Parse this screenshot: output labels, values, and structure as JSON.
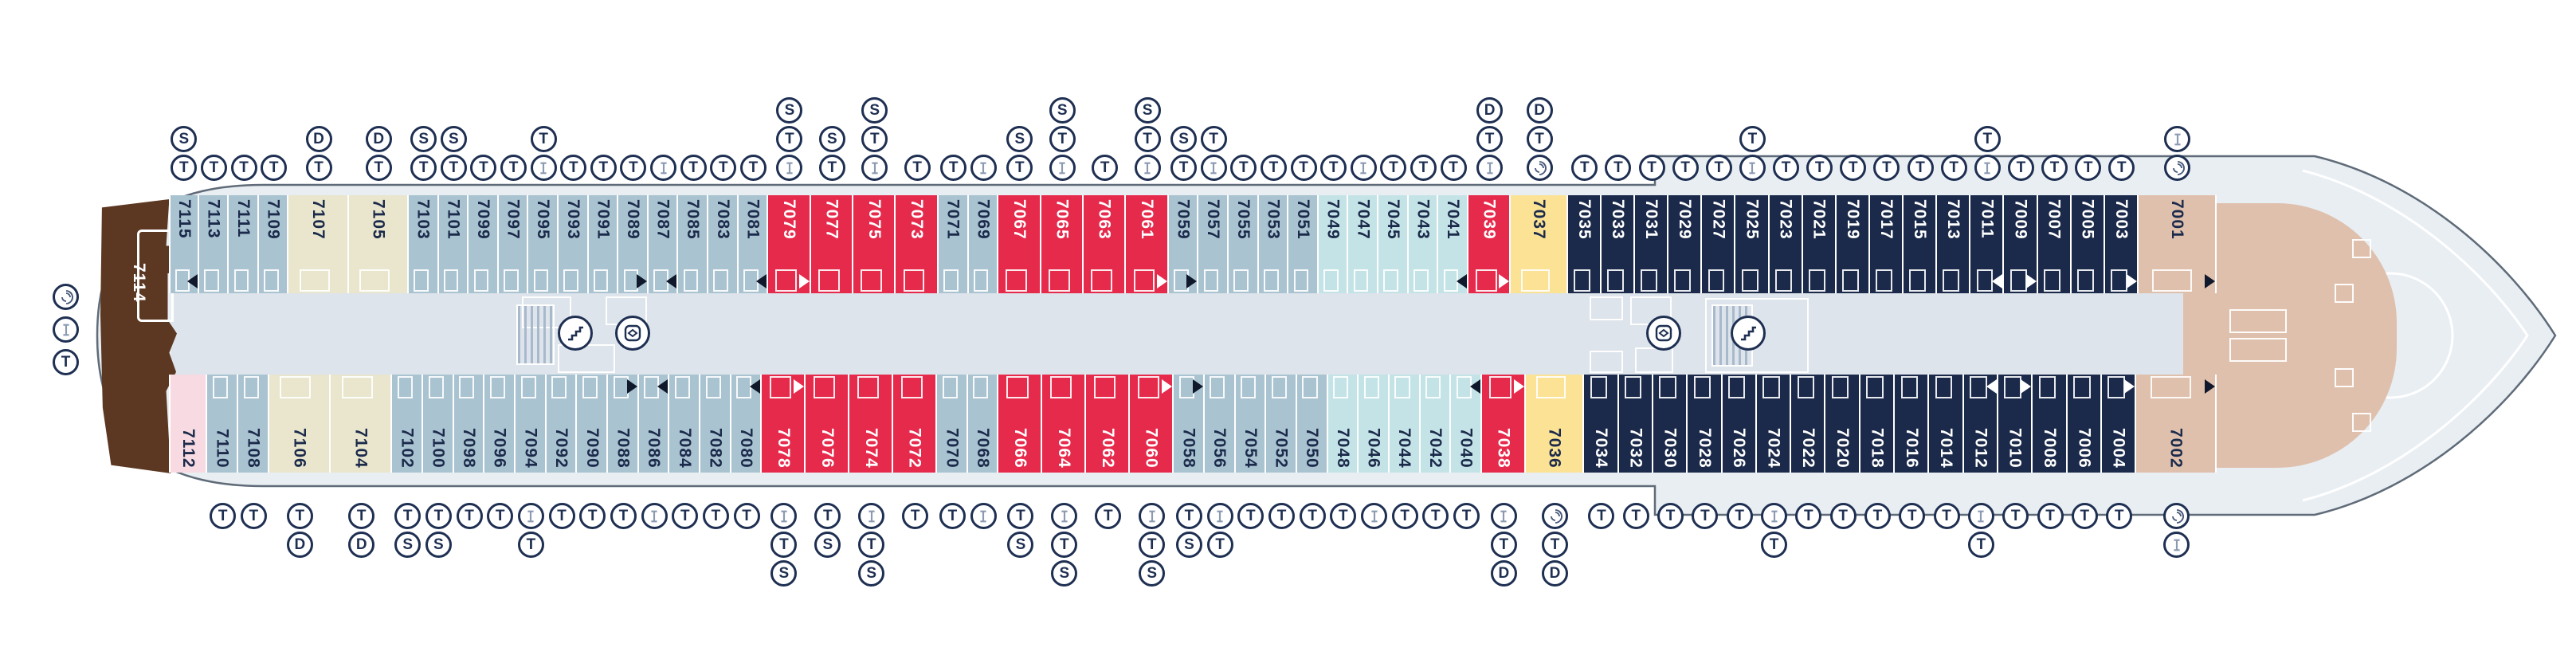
{
  "plan": {
    "stern_suite": {
      "num": "7114",
      "category": "suite-brown",
      "icons": [
        "laundry",
        "bunk",
        "T"
      ]
    },
    "icon_legend": {
      "T": "third-berth",
      "S": "sofa-bed",
      "D": "double-sofa-bed",
      "B": "bunk-bed",
      "L": "launderette"
    },
    "colors": {
      "standard": "#a9c3d1",
      "beige": "#e9e6cd",
      "red": "#e62a4c",
      "teal": "#c4e3e7",
      "yellow": "#fbe294",
      "navy": "#1b2a4a",
      "tan": "#dfc0ad",
      "pink": "#f8dbe2",
      "brown": "#5c3722",
      "hull_fill": "#e9eef3",
      "hull_stroke": "#5f6b78",
      "corridor": "#dde4eb",
      "icon_ring": "#1e2f52"
    },
    "category_weights": {
      "st": 1,
      "bg": 2.0,
      "rd": 1.42,
      "tl": 1,
      "yl": 1.9,
      "nv": 1.12,
      "tn": 2.6,
      "pk": 1.25
    },
    "features": {
      "aft_lobby": [
        "stairs",
        "elevator"
      ],
      "fwd_lobby": [
        "elevator",
        "stairs"
      ],
      "bow": [
        "helipad-arc"
      ]
    },
    "top_row": [
      {
        "num": "7115",
        "cat": "st",
        "icons": [
          "T",
          "S"
        ],
        "marker": "bl"
      },
      {
        "num": "7113",
        "cat": "st",
        "icons": [
          "T"
        ]
      },
      {
        "num": "7111",
        "cat": "st",
        "icons": [
          "T"
        ]
      },
      {
        "num": "7109",
        "cat": "st",
        "icons": [
          "T"
        ]
      },
      {
        "num": "7107",
        "cat": "bg",
        "icons": [
          "T",
          "D"
        ]
      },
      {
        "num": "7105",
        "cat": "bg",
        "icons": [
          "T",
          "D"
        ]
      },
      {
        "num": "7103",
        "cat": "st",
        "icons": [
          "T",
          "S"
        ]
      },
      {
        "num": "7101",
        "cat": "st",
        "icons": [
          "T",
          "S"
        ]
      },
      {
        "num": "7099",
        "cat": "st",
        "icons": [
          "T"
        ]
      },
      {
        "num": "7097",
        "cat": "st",
        "icons": [
          "T"
        ]
      },
      {
        "num": "7095",
        "cat": "st",
        "icons": [
          "B",
          "T"
        ]
      },
      {
        "num": "7093",
        "cat": "st",
        "icons": [
          "T"
        ]
      },
      {
        "num": "7091",
        "cat": "st",
        "icons": [
          "T"
        ]
      },
      {
        "num": "7089",
        "cat": "st",
        "icons": [
          "T"
        ],
        "marker": "br"
      },
      {
        "num": "7087",
        "cat": "st",
        "icons": [
          "B"
        ],
        "marker": "bl"
      },
      {
        "num": "7085",
        "cat": "st",
        "icons": [
          "T"
        ]
      },
      {
        "num": "7083",
        "cat": "st",
        "icons": [
          "T"
        ]
      },
      {
        "num": "7081",
        "cat": "st",
        "icons": [
          "T"
        ],
        "marker": "bl"
      },
      {
        "num": "7079",
        "cat": "rd",
        "icons": [
          "B",
          "T",
          "S"
        ],
        "marker": "wr"
      },
      {
        "num": "7077",
        "cat": "rd",
        "icons": [
          "T",
          "S"
        ]
      },
      {
        "num": "7075",
        "cat": "rd",
        "icons": [
          "B",
          "T",
          "S"
        ]
      },
      {
        "num": "7073",
        "cat": "rd",
        "icons": [
          "T"
        ]
      },
      {
        "num": "7071",
        "cat": "st",
        "icons": [
          "T"
        ]
      },
      {
        "num": "7069",
        "cat": "st",
        "icons": [
          "B"
        ]
      },
      {
        "num": "7067",
        "cat": "rd",
        "icons": [
          "T",
          "S"
        ]
      },
      {
        "num": "7065",
        "cat": "rd",
        "icons": [
          "B",
          "T",
          "S"
        ]
      },
      {
        "num": "7063",
        "cat": "rd",
        "icons": [
          "T"
        ]
      },
      {
        "num": "7061",
        "cat": "rd",
        "icons": [
          "B",
          "T",
          "S"
        ],
        "marker": "wr"
      },
      {
        "num": "7059",
        "cat": "st",
        "icons": [
          "T",
          "S"
        ],
        "marker": "br"
      },
      {
        "num": "7057",
        "cat": "st",
        "icons": [
          "B",
          "T"
        ]
      },
      {
        "num": "7055",
        "cat": "st",
        "icons": [
          "T"
        ]
      },
      {
        "num": "7053",
        "cat": "st",
        "icons": [
          "T"
        ]
      },
      {
        "num": "7051",
        "cat": "st",
        "icons": [
          "T"
        ]
      },
      {
        "num": "7049",
        "cat": "tl",
        "icons": [
          "T"
        ]
      },
      {
        "num": "7047",
        "cat": "tl",
        "icons": [
          "B"
        ]
      },
      {
        "num": "7045",
        "cat": "tl",
        "icons": [
          "T"
        ]
      },
      {
        "num": "7043",
        "cat": "tl",
        "icons": [
          "T"
        ]
      },
      {
        "num": "7041",
        "cat": "tl",
        "icons": [
          "T"
        ],
        "marker": "bl"
      },
      {
        "num": "7039",
        "cat": "rd",
        "icons": [
          "B",
          "T",
          "D"
        ],
        "marker": "wr"
      },
      {
        "num": "7037",
        "cat": "yl",
        "icons": [
          "L",
          "T",
          "D"
        ]
      },
      {
        "num": "7035",
        "cat": "nv",
        "icons": [
          "T"
        ]
      },
      {
        "num": "7033",
        "cat": "nv",
        "icons": [
          "T"
        ]
      },
      {
        "num": "7031",
        "cat": "nv",
        "icons": [
          "T"
        ]
      },
      {
        "num": "7029",
        "cat": "nv",
        "icons": [
          "T"
        ]
      },
      {
        "num": "7027",
        "cat": "nv",
        "icons": [
          "T"
        ]
      },
      {
        "num": "7025",
        "cat": "nv",
        "icons": [
          "B",
          "T"
        ]
      },
      {
        "num": "7023",
        "cat": "nv",
        "icons": [
          "T"
        ]
      },
      {
        "num": "7021",
        "cat": "nv",
        "icons": [
          "T"
        ]
      },
      {
        "num": "7019",
        "cat": "nv",
        "icons": [
          "T"
        ]
      },
      {
        "num": "7017",
        "cat": "nv",
        "icons": [
          "T"
        ]
      },
      {
        "num": "7015",
        "cat": "nv",
        "icons": [
          "T"
        ]
      },
      {
        "num": "7013",
        "cat": "nv",
        "icons": [
          "T"
        ]
      },
      {
        "num": "7011",
        "cat": "nv",
        "icons": [
          "B",
          "T"
        ],
        "marker": "wl"
      },
      {
        "num": "7009",
        "cat": "nv",
        "icons": [
          "T"
        ],
        "marker": "wr"
      },
      {
        "num": "7007",
        "cat": "nv",
        "icons": [
          "T"
        ]
      },
      {
        "num": "7005",
        "cat": "nv",
        "icons": [
          "T"
        ]
      },
      {
        "num": "7003",
        "cat": "nv",
        "icons": [
          "T"
        ],
        "marker": "wr"
      },
      {
        "num": "7001",
        "cat": "tn",
        "icons": [
          "L",
          "B"
        ],
        "marker": "br"
      }
    ],
    "bottom_row": [
      {
        "num": "7112",
        "cat": "pk",
        "icons": []
      },
      {
        "num": "7110",
        "cat": "st",
        "icons": [
          "T"
        ]
      },
      {
        "num": "7108",
        "cat": "st",
        "icons": [
          "T"
        ]
      },
      {
        "num": "7106",
        "cat": "bg",
        "icons": [
          "T",
          "D"
        ]
      },
      {
        "num": "7104",
        "cat": "bg",
        "icons": [
          "T",
          "D"
        ]
      },
      {
        "num": "7102",
        "cat": "st",
        "icons": [
          "T",
          "S"
        ]
      },
      {
        "num": "7100",
        "cat": "st",
        "icons": [
          "T",
          "S"
        ]
      },
      {
        "num": "7098",
        "cat": "st",
        "icons": [
          "T"
        ]
      },
      {
        "num": "7096",
        "cat": "st",
        "icons": [
          "T"
        ]
      },
      {
        "num": "7094",
        "cat": "st",
        "icons": [
          "B",
          "T"
        ]
      },
      {
        "num": "7092",
        "cat": "st",
        "icons": [
          "T"
        ]
      },
      {
        "num": "7090",
        "cat": "st",
        "icons": [
          "T"
        ]
      },
      {
        "num": "7088",
        "cat": "st",
        "icons": [
          "T"
        ],
        "marker": "br"
      },
      {
        "num": "7086",
        "cat": "st",
        "icons": [
          "B"
        ],
        "marker": "bl"
      },
      {
        "num": "7084",
        "cat": "st",
        "icons": [
          "T"
        ]
      },
      {
        "num": "7082",
        "cat": "st",
        "icons": [
          "T"
        ]
      },
      {
        "num": "7080",
        "cat": "st",
        "icons": [
          "T"
        ],
        "marker": "bl"
      },
      {
        "num": "7078",
        "cat": "rd",
        "icons": [
          "B",
          "T",
          "S"
        ],
        "marker": "wr"
      },
      {
        "num": "7076",
        "cat": "rd",
        "icons": [
          "T",
          "S"
        ]
      },
      {
        "num": "7074",
        "cat": "rd",
        "icons": [
          "B",
          "T",
          "S"
        ]
      },
      {
        "num": "7072",
        "cat": "rd",
        "icons": [
          "T"
        ]
      },
      {
        "num": "7070",
        "cat": "st",
        "icons": [
          "T"
        ]
      },
      {
        "num": "7068",
        "cat": "st",
        "icons": [
          "B"
        ]
      },
      {
        "num": "7066",
        "cat": "rd",
        "icons": [
          "T",
          "S"
        ]
      },
      {
        "num": "7064",
        "cat": "rd",
        "icons": [
          "B",
          "T",
          "S"
        ]
      },
      {
        "num": "7062",
        "cat": "rd",
        "icons": [
          "T"
        ]
      },
      {
        "num": "7060",
        "cat": "rd",
        "icons": [
          "B",
          "T",
          "S"
        ],
        "marker": "wr"
      },
      {
        "num": "7058",
        "cat": "st",
        "icons": [
          "T",
          "S"
        ],
        "marker": "br"
      },
      {
        "num": "7056",
        "cat": "st",
        "icons": [
          "B",
          "T"
        ]
      },
      {
        "num": "7054",
        "cat": "st",
        "icons": [
          "T"
        ]
      },
      {
        "num": "7052",
        "cat": "st",
        "icons": [
          "T"
        ]
      },
      {
        "num": "7050",
        "cat": "st",
        "icons": [
          "T"
        ]
      },
      {
        "num": "7048",
        "cat": "tl",
        "icons": [
          "T"
        ]
      },
      {
        "num": "7046",
        "cat": "tl",
        "icons": [
          "B"
        ]
      },
      {
        "num": "7044",
        "cat": "tl",
        "icons": [
          "T"
        ]
      },
      {
        "num": "7042",
        "cat": "tl",
        "icons": [
          "T"
        ]
      },
      {
        "num": "7040",
        "cat": "tl",
        "icons": [
          "T"
        ],
        "marker": "bl"
      },
      {
        "num": "7038",
        "cat": "rd",
        "icons": [
          "B",
          "T",
          "D"
        ],
        "marker": "wr"
      },
      {
        "num": "7036",
        "cat": "yl",
        "icons": [
          "L",
          "T",
          "D"
        ]
      },
      {
        "num": "7034",
        "cat": "nv",
        "icons": [
          "T"
        ]
      },
      {
        "num": "7032",
        "cat": "nv",
        "icons": [
          "T"
        ]
      },
      {
        "num": "7030",
        "cat": "nv",
        "icons": [
          "T"
        ]
      },
      {
        "num": "7028",
        "cat": "nv",
        "icons": [
          "T"
        ]
      },
      {
        "num": "7026",
        "cat": "nv",
        "icons": [
          "T"
        ]
      },
      {
        "num": "7024",
        "cat": "nv",
        "icons": [
          "B",
          "T"
        ]
      },
      {
        "num": "7022",
        "cat": "nv",
        "icons": [
          "T"
        ]
      },
      {
        "num": "7020",
        "cat": "nv",
        "icons": [
          "T"
        ]
      },
      {
        "num": "7018",
        "cat": "nv",
        "icons": [
          "T"
        ]
      },
      {
        "num": "7016",
        "cat": "nv",
        "icons": [
          "T"
        ]
      },
      {
        "num": "7014",
        "cat": "nv",
        "icons": [
          "T"
        ]
      },
      {
        "num": "7012",
        "cat": "nv",
        "icons": [
          "B",
          "T"
        ],
        "marker": "wl"
      },
      {
        "num": "7010",
        "cat": "nv",
        "icons": [
          "T"
        ],
        "marker": "wr"
      },
      {
        "num": "7008",
        "cat": "nv",
        "icons": [
          "T"
        ]
      },
      {
        "num": "7006",
        "cat": "nv",
        "icons": [
          "T"
        ]
      },
      {
        "num": "7004",
        "cat": "nv",
        "icons": [
          "T"
        ],
        "marker": "wr"
      },
      {
        "num": "7002",
        "cat": "tn",
        "icons": [
          "L",
          "B"
        ],
        "marker": "br"
      }
    ]
  }
}
